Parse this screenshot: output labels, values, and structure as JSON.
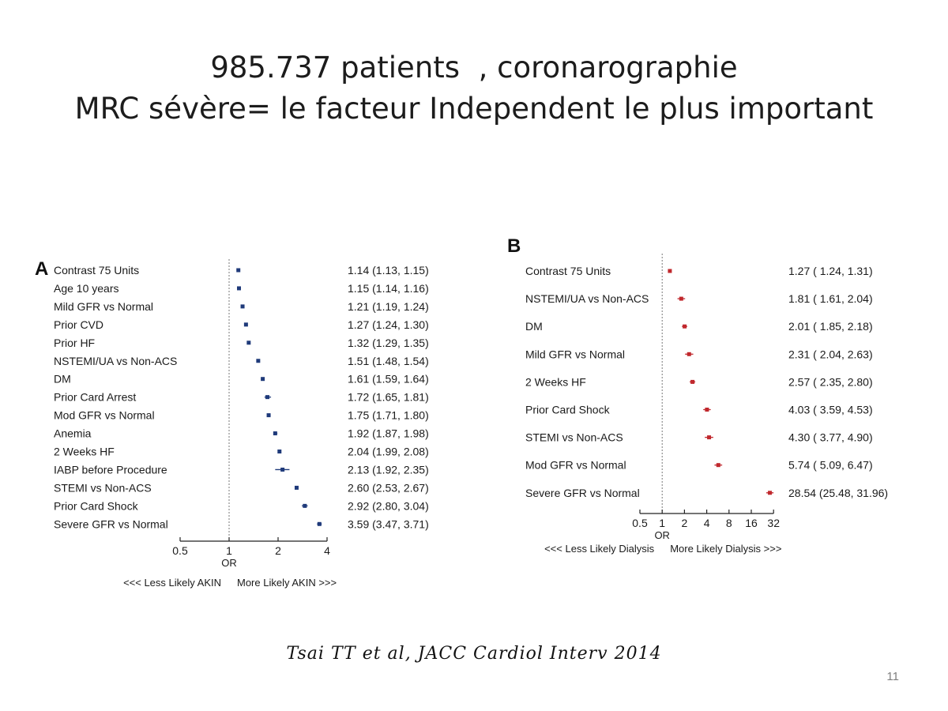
{
  "slide": {
    "title_line1": "985.737 patients  , coronarographie",
    "title_line2": "MRC sévère= le facteur Independent le plus important",
    "citation": "Tsai TT et al, JACC Cardiol Interv 2014",
    "slide_number": "11"
  },
  "chart_data": [
    {
      "type": "forest",
      "panel": "A",
      "scale": "log2",
      "xlim": [
        0.5,
        4.6
      ],
      "xticks": [
        0.5,
        1,
        2,
        4
      ],
      "xtick_labels": [
        "0.5",
        "1",
        "2",
        "4"
      ],
      "reference_line": 1,
      "xlabel": "OR",
      "left_direction_label": "<<< Less Likely AKIN",
      "right_direction_label": "More Likely AKIN >>>",
      "marker_color": "#1f3a7a",
      "rows": [
        {
          "label": "Contrast 75 Units",
          "or": 1.14,
          "lo": 1.13,
          "hi": 1.15,
          "text": "1.14 (1.13, 1.15)"
        },
        {
          "label": "Age 10 years",
          "or": 1.15,
          "lo": 1.14,
          "hi": 1.16,
          "text": "1.15 (1.14, 1.16)"
        },
        {
          "label": "Mild GFR vs Normal",
          "or": 1.21,
          "lo": 1.19,
          "hi": 1.24,
          "text": "1.21 (1.19, 1.24)"
        },
        {
          "label": "Prior CVD",
          "or": 1.27,
          "lo": 1.24,
          "hi": 1.3,
          "text": "1.27 (1.24, 1.30)"
        },
        {
          "label": "Prior HF",
          "or": 1.32,
          "lo": 1.29,
          "hi": 1.35,
          "text": "1.32 (1.29, 1.35)"
        },
        {
          "label": "NSTEMI/UA vs Non-ACS",
          "or": 1.51,
          "lo": 1.48,
          "hi": 1.54,
          "text": "1.51 (1.48, 1.54)"
        },
        {
          "label": "DM",
          "or": 1.61,
          "lo": 1.59,
          "hi": 1.64,
          "text": "1.61 (1.59, 1.64)"
        },
        {
          "label": "Prior Card Arrest",
          "or": 1.72,
          "lo": 1.65,
          "hi": 1.81,
          "text": "1.72 (1.65, 1.81)"
        },
        {
          "label": "Mod GFR vs Normal",
          "or": 1.75,
          "lo": 1.71,
          "hi": 1.8,
          "text": "1.75 (1.71, 1.80)"
        },
        {
          "label": "Anemia",
          "or": 1.92,
          "lo": 1.87,
          "hi": 1.98,
          "text": "1.92 (1.87, 1.98)"
        },
        {
          "label": "2 Weeks HF",
          "or": 2.04,
          "lo": 1.99,
          "hi": 2.08,
          "text": "2.04 (1.99, 2.08)"
        },
        {
          "label": "IABP before Procedure",
          "or": 2.13,
          "lo": 1.92,
          "hi": 2.35,
          "text": "2.13 (1.92, 2.35)"
        },
        {
          "label": "STEMI vs Non-ACS",
          "or": 2.6,
          "lo": 2.53,
          "hi": 2.67,
          "text": "2.60 (2.53, 2.67)"
        },
        {
          "label": "Prior Card Shock",
          "or": 2.92,
          "lo": 2.8,
          "hi": 3.04,
          "text": "2.92 (2.80, 3.04)"
        },
        {
          "label": "Severe GFR vs Normal",
          "or": 3.59,
          "lo": 3.47,
          "hi": 3.71,
          "text": "3.59 (3.47, 3.71)"
        }
      ]
    },
    {
      "type": "forest",
      "panel": "B",
      "scale": "log2",
      "xlim": [
        0.5,
        32
      ],
      "xticks": [
        0.5,
        1,
        2,
        4,
        8,
        16,
        32
      ],
      "xtick_labels": [
        "0.5",
        "1",
        "2",
        "4",
        "8",
        "16",
        "32"
      ],
      "reference_line": 1,
      "xlabel": "OR",
      "left_direction_label": "<<< Less Likely Dialysis",
      "right_direction_label": "More Likely Dialysis >>>",
      "marker_color": "#c0282d",
      "rows": [
        {
          "label": "Contrast 75 Units",
          "or": 1.27,
          "lo": 1.24,
          "hi": 1.31,
          "text": "1.27 ( 1.24, 1.31)"
        },
        {
          "label": "NSTEMI/UA vs Non-ACS",
          "or": 1.81,
          "lo": 1.61,
          "hi": 2.04,
          "text": "1.81 ( 1.61, 2.04)"
        },
        {
          "label": "DM",
          "or": 2.01,
          "lo": 1.85,
          "hi": 2.18,
          "text": "2.01 ( 1.85, 2.18)"
        },
        {
          "label": "Mild GFR vs Normal",
          "or": 2.31,
          "lo": 2.04,
          "hi": 2.63,
          "text": "2.31 ( 2.04, 2.63)"
        },
        {
          "label": "2 Weeks HF",
          "or": 2.57,
          "lo": 2.35,
          "hi": 2.8,
          "text": "2.57 ( 2.35, 2.80)"
        },
        {
          "label": "Prior Card Shock",
          "or": 4.03,
          "lo": 3.59,
          "hi": 4.53,
          "text": "4.03 ( 3.59, 4.53)"
        },
        {
          "label": "STEMI vs Non-ACS",
          "or": 4.3,
          "lo": 3.77,
          "hi": 4.9,
          "text": "4.30 ( 3.77, 4.90)"
        },
        {
          "label": "Mod GFR vs Normal",
          "or": 5.74,
          "lo": 5.09,
          "hi": 6.47,
          "text": "5.74 ( 5.09, 6.47)"
        },
        {
          "label": "Severe GFR vs Normal",
          "or": 28.54,
          "lo": 25.48,
          "hi": 31.96,
          "text": "28.54 (25.48, 31.96)"
        }
      ]
    }
  ]
}
